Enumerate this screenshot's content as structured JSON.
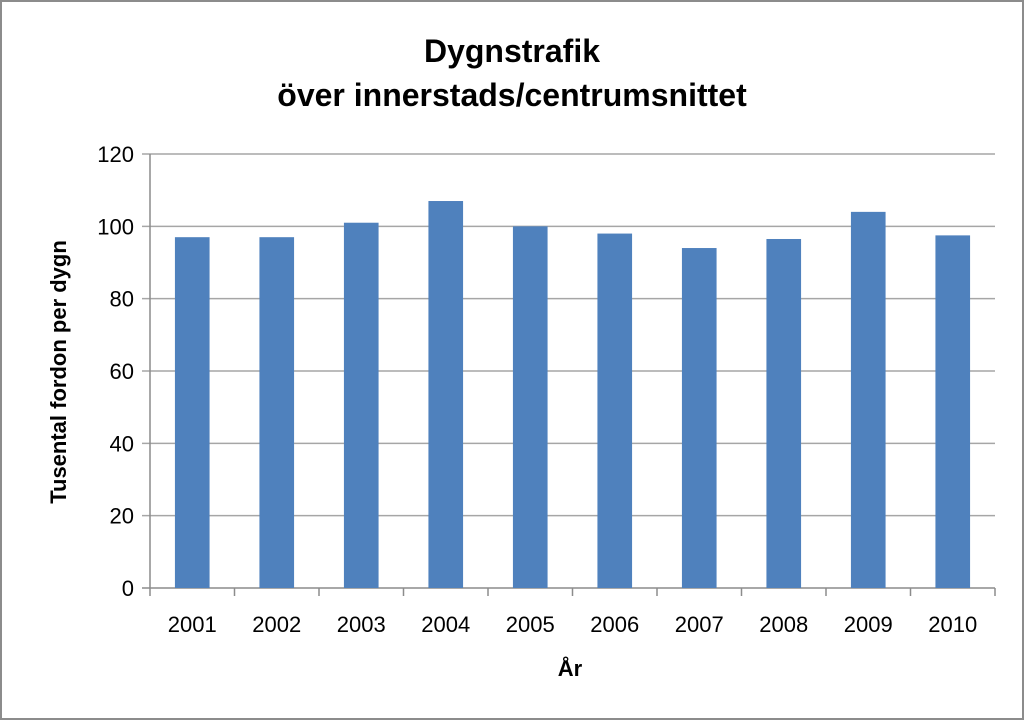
{
  "chart_data": {
    "type": "bar",
    "title_lines": [
      "Dygnstrafik",
      "över innerstads/centrumsnittet"
    ],
    "xlabel": "År",
    "ylabel": "Tusental fordon per dygn",
    "categories": [
      "2001",
      "2002",
      "2003",
      "2004",
      "2005",
      "2006",
      "2007",
      "2008",
      "2009",
      "2010"
    ],
    "values": [
      97,
      97,
      101,
      107,
      100,
      98,
      94,
      96.5,
      104,
      97.5
    ],
    "ylim": [
      0,
      120
    ],
    "yticks": [
      0,
      20,
      40,
      60,
      80,
      100,
      120
    ],
    "grid": true,
    "legend": "none",
    "bar_color": "#4f81bd",
    "grid_color": "#a6a6a6"
  }
}
